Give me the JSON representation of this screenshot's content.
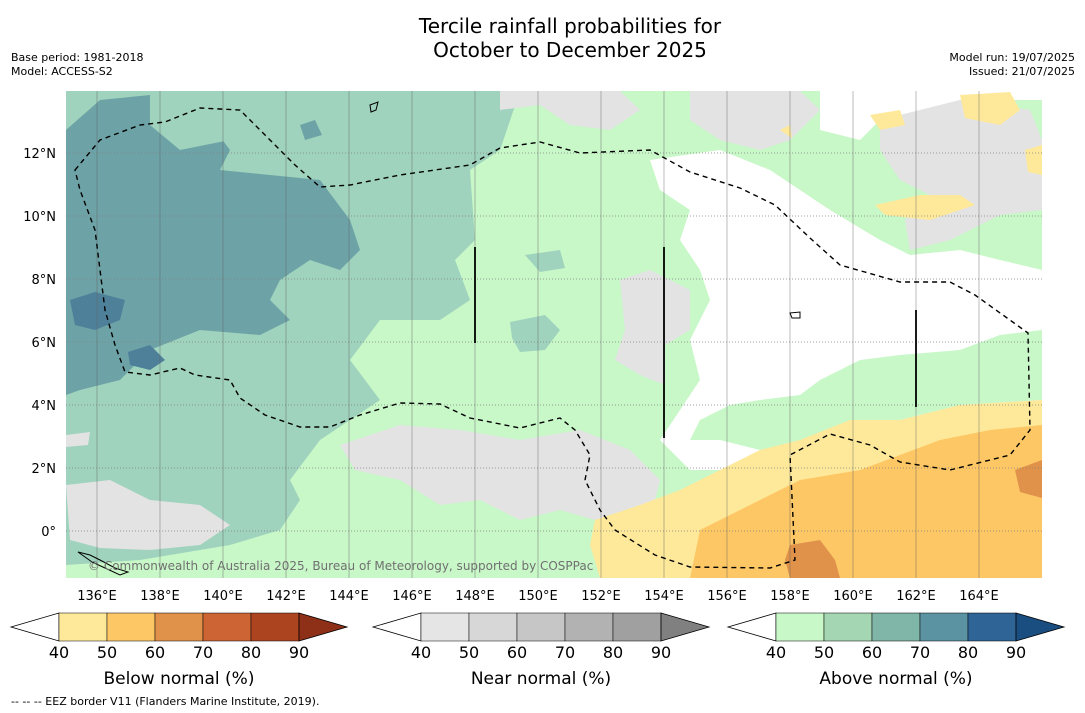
{
  "title_line1": "Tercile rainfall probabilities for",
  "title_line2": "October to December 2025",
  "meta_left": {
    "base_period": "Base period: 1981-2018",
    "model": "Model: ACCESS-S2"
  },
  "meta_right": {
    "model_run": "Model run: 19/07/2025",
    "issued": "Issued: 21/07/2025"
  },
  "map": {
    "lat_labels": [
      "12°N",
      "10°N",
      "8°N",
      "6°N",
      "4°N",
      "2°N",
      "0°"
    ],
    "lon_labels": [
      "136°E",
      "138°E",
      "140°E",
      "142°E",
      "144°E",
      "146°E",
      "148°E",
      "150°E",
      "152°E",
      "154°E",
      "156°E",
      "158°E",
      "160°E",
      "162°E",
      "164°E"
    ],
    "copyright": "© Commonwealth of Australia 2025, Bureau of Meteorology, supported by COSPPac"
  },
  "colorbars": [
    {
      "title": "Below normal (%)",
      "ticks": [
        "40",
        "50",
        "60",
        "70",
        "80",
        "90"
      ],
      "colors": [
        "#ffffff",
        "#fee99a",
        "#fdc765",
        "#e0924a",
        "#cc6433",
        "#ad4420",
        "#8e3018"
      ]
    },
    {
      "title": "Near normal (%)",
      "ticks": [
        "40",
        "50",
        "60",
        "70",
        "80",
        "90"
      ],
      "colors": [
        "#ffffff",
        "#e5e5e5",
        "#d7d7d7",
        "#c6c6c6",
        "#b2b2b2",
        "#a0a0a0",
        "#808080"
      ]
    },
    {
      "title": "Above normal (%)",
      "ticks": [
        "40",
        "50",
        "60",
        "70",
        "80",
        "90"
      ],
      "colors": [
        "#ffffff",
        "#c8f7c8",
        "#a5d6b3",
        "#80b6a7",
        "#5b93a2",
        "#2f6496",
        "#1b4e80"
      ]
    }
  ],
  "footnote": "--  --  -- EEZ border V11 (Flanders Marine Institute, 2019)."
}
